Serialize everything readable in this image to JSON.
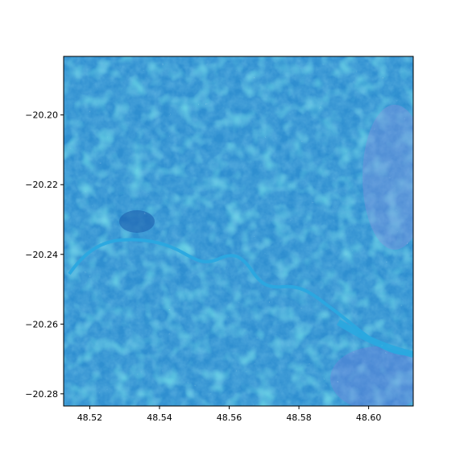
{
  "chart_data": {
    "type": "image",
    "title": "",
    "xlabel": "",
    "ylabel": "",
    "x_ticks": [
      "48.52",
      "48.54",
      "48.56",
      "48.58",
      "48.60"
    ],
    "y_ticks": [
      "−20.20",
      "−20.22",
      "−20.24",
      "−20.26",
      "−20.28"
    ],
    "x_tick_values": [
      48.52,
      48.54,
      48.56,
      48.58,
      48.6
    ],
    "y_tick_values": [
      -20.2,
      -20.22,
      -20.24,
      -20.26,
      -20.28
    ],
    "xlim": [
      48.5125,
      48.6128
    ],
    "ylim": [
      -20.2835,
      -20.1832
    ],
    "grid": false,
    "image_content": "false-color satellite imagery with a winding river",
    "colors": {
      "base": "#2f8fd0",
      "light": "#5ec4ea",
      "dark": "#1f6fb8",
      "cyan": "#33d1d6",
      "river": "#2aa8e0",
      "purple": "#8f8fe0",
      "bright": "#d8f4fb"
    }
  }
}
